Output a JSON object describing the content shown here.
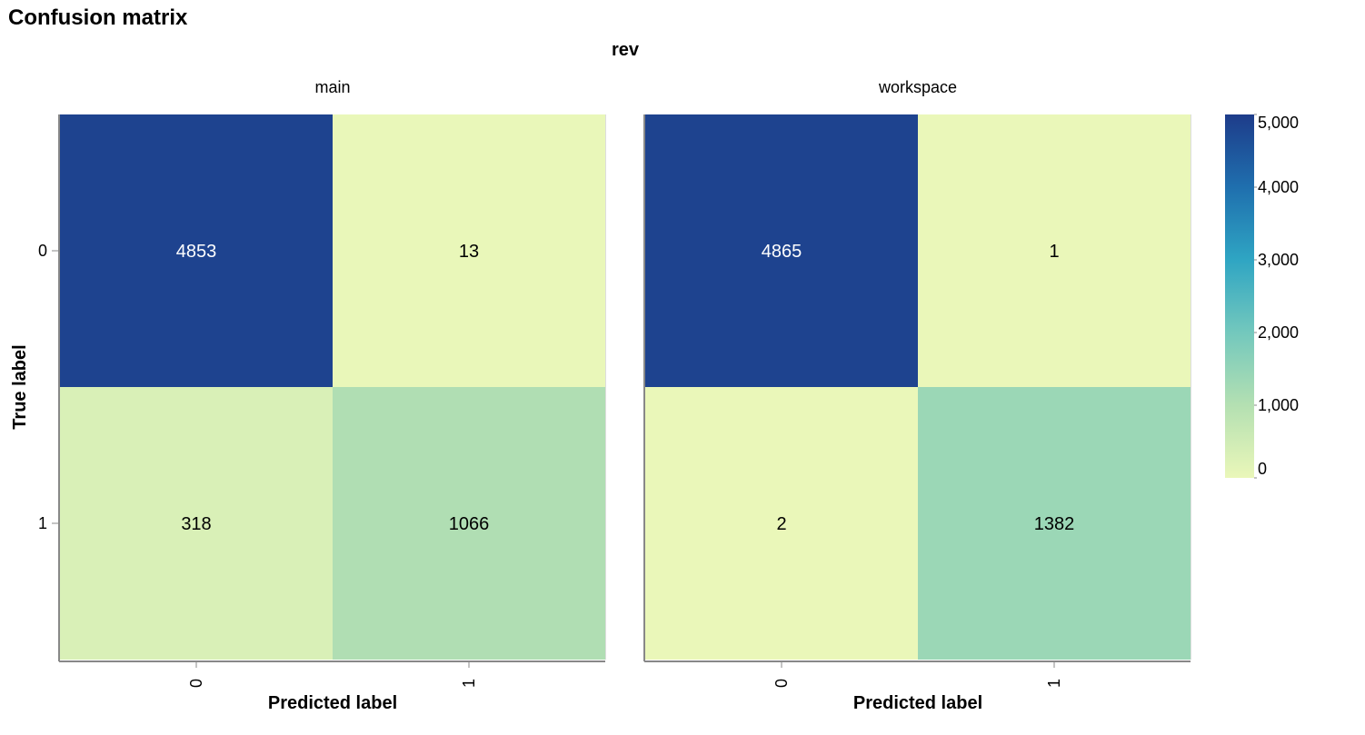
{
  "chart_data": {
    "type": "heatmap",
    "title": "Confusion matrix",
    "column_facet_title": "rev",
    "xlabel": "Predicted label",
    "ylabel": "True label",
    "categories_x": [
      "0",
      "1"
    ],
    "categories_y": [
      "0",
      "1"
    ],
    "facets": [
      {
        "name": "main",
        "cells": [
          {
            "true": "0",
            "pred": "0",
            "value": 4853
          },
          {
            "true": "0",
            "pred": "1",
            "value": 13
          },
          {
            "true": "1",
            "pred": "0",
            "value": 318
          },
          {
            "true": "1",
            "pred": "1",
            "value": 1066
          }
        ]
      },
      {
        "name": "workspace",
        "cells": [
          {
            "true": "0",
            "pred": "0",
            "value": 4865
          },
          {
            "true": "0",
            "pred": "1",
            "value": 1
          },
          {
            "true": "1",
            "pred": "0",
            "value": 2
          },
          {
            "true": "1",
            "pred": "1",
            "value": 1382
          }
        ]
      }
    ],
    "color_scale": {
      "scheme": "yellowgreenblue",
      "domain": [
        0,
        5000
      ],
      "stops": [
        {
          "offset": 0,
          "color": "#eaf7b9"
        },
        {
          "offset": 0.2,
          "color": "#b4e0b2"
        },
        {
          "offset": 0.4,
          "color": "#73c8bd"
        },
        {
          "offset": 0.6,
          "color": "#2fa5c3"
        },
        {
          "offset": 0.8,
          "color": "#1f6fae"
        },
        {
          "offset": 1,
          "color": "#1e3c8a"
        }
      ]
    },
    "legend": {
      "position": "right",
      "ticks": [
        0,
        1000,
        2000,
        3000,
        4000,
        5000
      ],
      "tick_labels": [
        "0",
        "1,000",
        "2,000",
        "3,000",
        "4,000",
        "5,000"
      ]
    },
    "label_threshold": 2500,
    "label_color_dark": "#000000",
    "label_color_light": "#ffffff"
  }
}
